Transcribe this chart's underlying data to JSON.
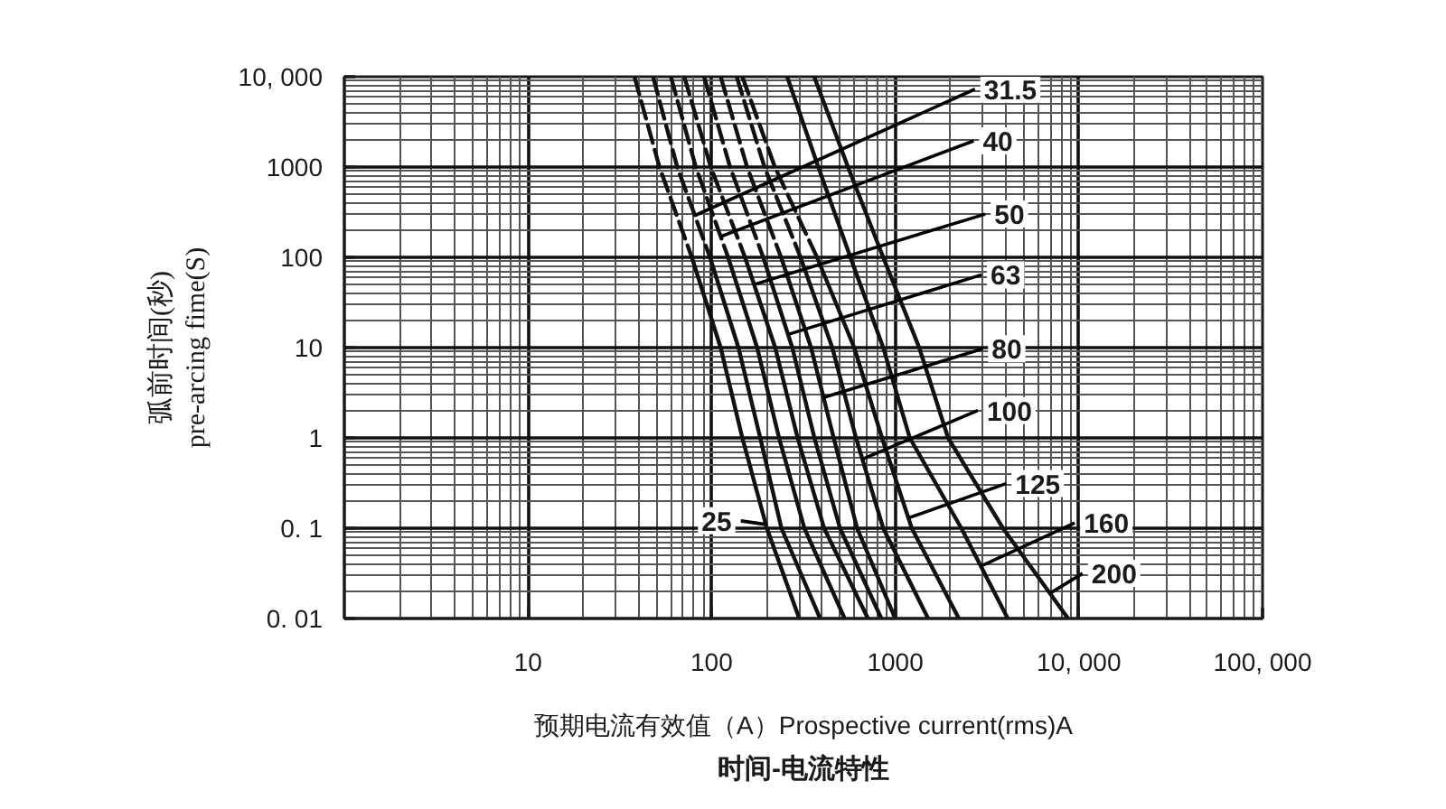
{
  "chart_data": {
    "type": "line",
    "title": "时间-电流特性",
    "xlabel": "预期电流有效值（A）Prospective current(rms)A",
    "ylabel": "弧前时间(秒)\npre-arcing fime(S)",
    "log": "xy",
    "grid": true,
    "line_style": "solid",
    "xlim": [
      1,
      100000
    ],
    "ylim": [
      0.01,
      10000
    ],
    "xticks": [
      10,
      100,
      1000,
      {
        "value": 10000,
        "label": "10, 000"
      },
      {
        "value": 100000,
        "label": "100, 000"
      }
    ],
    "yticks": [
      {
        "value": 0.01,
        "label": "0. 01"
      },
      {
        "value": 0.1,
        "label": "0. 1"
      },
      1,
      10,
      100,
      1000,
      {
        "value": 10000,
        "label": "10, 000"
      }
    ],
    "series": [
      {
        "color": "#111111",
        "line_style": "dashed",
        "x": [
          38,
          52,
          78
        ],
        "values": [
          10000,
          1000,
          100
        ]
      },
      {
        "color": "#111111",
        "x": [
          78,
          112,
          147,
          200,
          300
        ],
        "values": [
          100,
          10,
          1,
          0.1,
          0.01
        ]
      },
      {
        "color": "#111111",
        "line_style": "dashed",
        "x": [
          48,
          65,
          98
        ],
        "values": [
          10000,
          1000,
          100
        ]
      },
      {
        "color": "#111111",
        "x": [
          98,
          140,
          184,
          240,
          390
        ],
        "values": [
          100,
          10,
          1,
          0.1,
          0.01
        ]
      },
      {
        "color": "#111111",
        "line_style": "dashed",
        "x": [
          60,
          82,
          123
        ],
        "values": [
          10000,
          1000,
          100
        ]
      },
      {
        "color": "#111111",
        "x": [
          123,
          177,
          233,
          320,
          530
        ],
        "values": [
          100,
          10,
          1,
          0.1,
          0.01
        ]
      },
      {
        "color": "#111111",
        "line_style": "dashed",
        "x": [
          71,
          99,
          152
        ],
        "values": [
          10000,
          1000,
          100
        ]
      },
      {
        "color": "#111111",
        "x": [
          152,
          222,
          294,
          410,
          710
        ],
        "values": [
          100,
          10,
          1,
          0.1,
          0.01
        ]
      },
      {
        "color": "#111111",
        "line_style": "dashed",
        "x": [
          91,
          126,
          191
        ],
        "values": [
          10000,
          1000,
          100
        ]
      },
      {
        "color": "#111111",
        "x": [
          191,
          275,
          363,
          500,
          840
        ],
        "values": [
          100,
          10,
          1,
          0.1,
          0.01
        ]
      },
      {
        "color": "#111111",
        "line_style": "dashed",
        "x": [
          112,
          156,
          239
        ],
        "values": [
          10000,
          1000,
          100
        ]
      },
      {
        "color": "#111111",
        "x": [
          239,
          348,
          462,
          620,
          1000
        ],
        "values": [
          100,
          10,
          1,
          0.1,
          0.01
        ]
      },
      {
        "color": "#111111",
        "line_style": "dashed",
        "x": [
          137,
          194,
          305
        ],
        "values": [
          10000,
          1000,
          100
        ]
      },
      {
        "color": "#111111",
        "x": [
          305,
          454,
          611,
          860,
          1510
        ],
        "values": [
          100,
          10,
          1,
          0.1,
          0.01
        ]
      },
      {
        "color": "#111111",
        "line_style": "dashed",
        "x": [
          147,
          221,
          375
        ],
        "values": [
          10000,
          1000,
          100
        ]
      },
      {
        "color": "#111111",
        "x": [
          375,
          598,
          847,
          1230,
          2220
        ],
        "values": [
          100,
          10,
          1,
          0.1,
          0.01
        ]
      },
      {
        "color": "#111111",
        "x": [
          258,
          381,
          570,
          860,
          1200,
          2290,
          4100
        ],
        "values": [
          10000,
          1000,
          100,
          10,
          1,
          0.1,
          0.01
        ]
      },
      {
        "color": "#111111",
        "x": [
          362,
          553,
          860,
          1350,
          1940,
          3860,
          8730
        ],
        "values": [
          10000,
          1000,
          100,
          10,
          1,
          0.1,
          0.01
        ]
      }
    ],
    "annotations": [
      {
        "text": "25",
        "x": 198,
        "y": 0.11
      },
      {
        "text": "31.5",
        "x": 81,
        "y": 290
      },
      {
        "text": "40",
        "x": 112,
        "y": 170
      },
      {
        "text": "50",
        "x": 170,
        "y": 50
      },
      {
        "text": "63",
        "x": 261,
        "y": 14
      },
      {
        "text": "80",
        "x": 407,
        "y": 2.8
      },
      {
        "text": "100",
        "x": 660,
        "y": 0.58
      },
      {
        "text": "125",
        "x": 1180,
        "y": 0.13
      },
      {
        "text": "160",
        "x": 2920,
        "y": 0.038
      },
      {
        "text": "200",
        "x": 6960,
        "y": 0.019
      }
    ]
  }
}
